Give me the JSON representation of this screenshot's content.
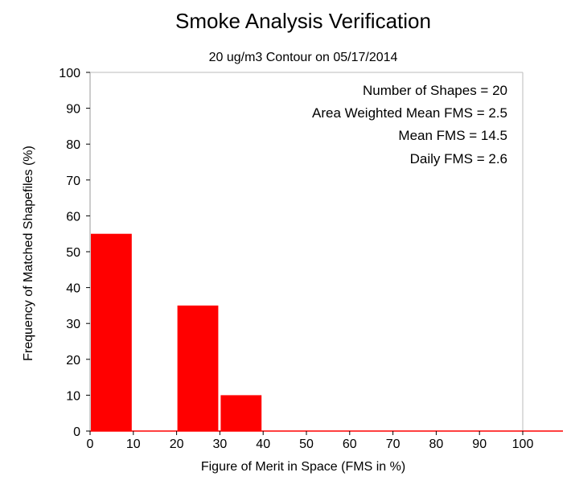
{
  "chart_data": {
    "type": "bar",
    "title": "Smoke Analysis Verification",
    "subtitle": "20 ug/m3 Contour on 05/17/2014",
    "xlabel": "Figure of Merit in Space (FMS in %)",
    "ylabel": "Frequency of Matched Shapefiles (%)",
    "xlim": [
      0,
      100
    ],
    "ylim": [
      0,
      100
    ],
    "x_ticks": [
      "0",
      "10",
      "20",
      "30",
      "40",
      "50",
      "60",
      "70",
      "80",
      "90",
      "100"
    ],
    "y_ticks": [
      "0",
      "10",
      "20",
      "30",
      "40",
      "50",
      "60",
      "70",
      "80",
      "90",
      "100"
    ],
    "bins": [
      {
        "start": 0,
        "end": 10,
        "value": 55
      },
      {
        "start": 10,
        "end": 20,
        "value": 0
      },
      {
        "start": 20,
        "end": 30,
        "value": 35
      },
      {
        "start": 30,
        "end": 40,
        "value": 10
      },
      {
        "start": 40,
        "end": 50,
        "value": 0
      },
      {
        "start": 50,
        "end": 60,
        "value": 0
      },
      {
        "start": 60,
        "end": 70,
        "value": 0
      },
      {
        "start": 70,
        "end": 80,
        "value": 0
      },
      {
        "start": 80,
        "end": 90,
        "value": 0
      },
      {
        "start": 90,
        "end": 100,
        "value": 0
      }
    ],
    "stats": [
      "Number of Shapes = 20",
      "Area Weighted Mean FMS = 2.5",
      "Mean FMS = 14.5",
      "Daily FMS = 2.6"
    ],
    "bar_color": "#ff0000",
    "grid": false
  }
}
